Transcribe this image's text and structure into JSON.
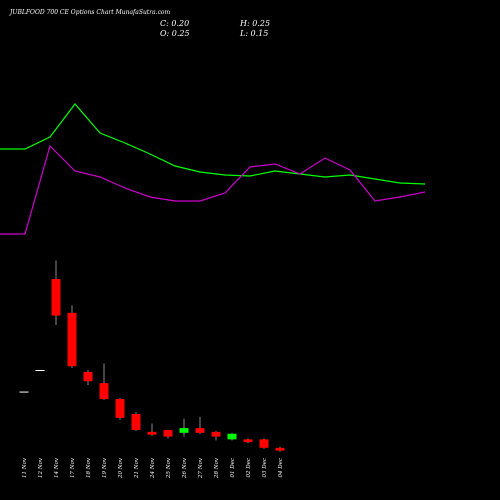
{
  "chart_data": [
    {
      "type": "line",
      "title": "JUBLFOOD 700 CE Options Chart MunafaSutra.com",
      "x": [
        0,
        1,
        2,
        3,
        4,
        5,
        6,
        7,
        8,
        9,
        10,
        11,
        12,
        13,
        14,
        15,
        16,
        17
      ],
      "xlim": [
        0,
        17
      ],
      "ylim": [
        0,
        16
      ],
      "series": [
        {
          "color": "#00ff00",
          "values": [
            10.1,
            10.1,
            11.3,
            14.6,
            11.7,
            10.7,
            9.6,
            8.4,
            7.8,
            7.5,
            7.4,
            7.9,
            7.6,
            7.3,
            7.5,
            7.1,
            6.7,
            6.6
          ]
        },
        {
          "color": "#cc00cc",
          "values": [
            1.6,
            1.6,
            10.4,
            7.9,
            7.3,
            6.2,
            5.3,
            4.9,
            4.9,
            5.7,
            8.3,
            8.6,
            7.6,
            9.2,
            8.0,
            4.9,
            5.3,
            5.8
          ]
        }
      ]
    },
    {
      "type": "candlestick",
      "annotations": [
        "C: 0.20",
        "H: 0.25",
        "O: 0.25",
        "L: 0.15"
      ],
      "categories": [
        "11 Nov",
        "12 Nov",
        "14 Nov",
        "17 Nov",
        "18 Nov",
        "19 Nov",
        "20 Nov",
        "21 Nov",
        "24 Nov",
        "25 Nov",
        "26 Nov",
        "27 Nov",
        "28 Nov",
        "01 Dec",
        "02 Dec",
        "03 Dec",
        "04 Dec"
      ],
      "open": [
        0.89,
        1.12,
        2.09,
        1.73,
        1.1,
        0.98,
        0.81,
        0.65,
        0.46,
        0.48,
        0.45,
        0.5,
        0.46,
        0.38,
        0.38,
        0.38,
        0.29
      ],
      "high": [
        0.89,
        1.12,
        2.29,
        1.81,
        1.12,
        1.19,
        0.82,
        0.67,
        0.55,
        0.48,
        0.6,
        0.62,
        0.47,
        0.45,
        0.39,
        0.39,
        0.3
      ],
      "low": [
        0.89,
        1.12,
        1.6,
        1.14,
        0.96,
        0.8,
        0.59,
        0.47,
        0.42,
        0.39,
        0.41,
        0.44,
        0.37,
        0.37,
        0.34,
        0.28,
        0.25
      ],
      "close": [
        0.89,
        1.12,
        1.7,
        1.16,
        1.0,
        0.81,
        0.61,
        0.48,
        0.43,
        0.41,
        0.5,
        0.45,
        0.41,
        0.44,
        0.35,
        0.29,
        0.26
      ],
      "ylim": [
        0,
        2.4
      ],
      "up_color": "#00ff00",
      "down_color": "#ff0000",
      "flat_color": "#ffffff"
    }
  ]
}
